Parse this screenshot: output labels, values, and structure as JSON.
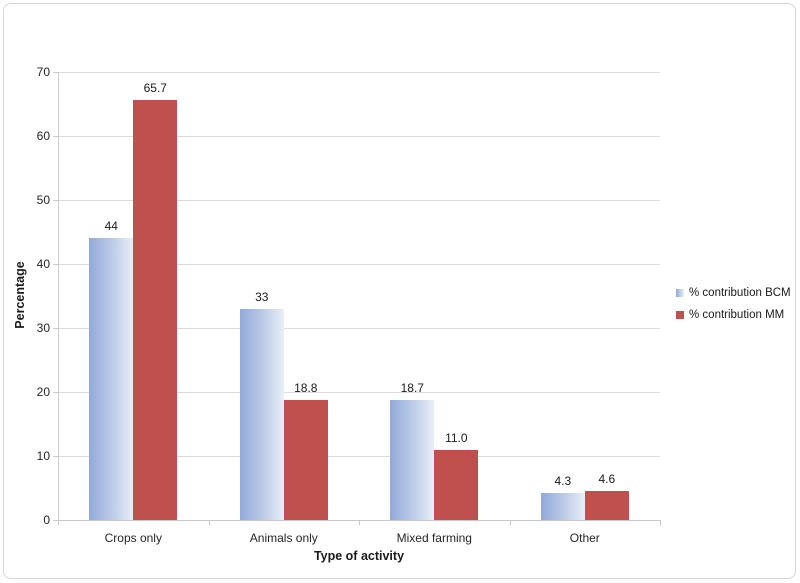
{
  "chart_data": {
    "type": "bar",
    "title": "",
    "xlabel": "Type of activity",
    "ylabel": "Percentage",
    "categories": [
      "Crops only",
      "Animals only",
      "Mixed farming",
      "Other"
    ],
    "series": [
      {
        "name": "% contribution BCM",
        "values": [
          44,
          33,
          18.7,
          4.3
        ],
        "labels": [
          "44",
          "33",
          "18.7",
          "4.3"
        ],
        "fill": "gradient",
        "color_start": "#92a9d9",
        "color_mid": "#bac9e7",
        "color_end": "#e9eef8"
      },
      {
        "name": "% contribution MM",
        "values": [
          65.7,
          18.8,
          11.0,
          4.6
        ],
        "labels": [
          "65.7",
          "18.8",
          "11.0",
          "4.6"
        ],
        "fill": "solid",
        "color": "#c0504d"
      }
    ],
    "ylim": [
      0,
      70
    ],
    "yticks": [
      0,
      10,
      20,
      30,
      40,
      50,
      60,
      70
    ],
    "grid": "horizontal",
    "legend_position": "right"
  },
  "colors": {
    "gridline": "#dcdcdc",
    "axis_line": "#c9c9c9",
    "frame_border": "#d6d6d6",
    "background": "#ffffff",
    "text": "#1a1a1a"
  }
}
